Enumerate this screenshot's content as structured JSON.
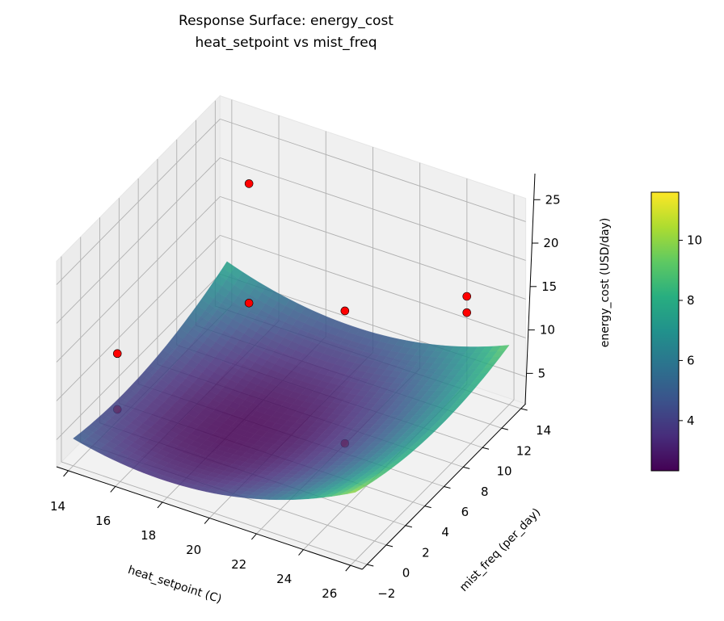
{
  "chart_data": {
    "type": "surface3d",
    "title": "Response Surface: energy_cost",
    "subtitle": "heat_setpoint vs mist_freq",
    "xlabel": "heat_setpoint (C)",
    "ylabel": "mist_freq (per_day)",
    "zlabel": "energy_cost (USD/day)",
    "xlim": [
      13.5,
      26.5
    ],
    "ylim": [
      -2.5,
      14.5
    ],
    "zlim": [
      1.5,
      28
    ],
    "xticks": [
      "14",
      "16",
      "18",
      "20",
      "22",
      "24",
      "26"
    ],
    "yticks": [
      "−2",
      "0",
      "2",
      "4",
      "6",
      "8",
      "10",
      "12",
      "14"
    ],
    "zticks": [
      "5",
      "10",
      "15",
      "20",
      "25"
    ],
    "surface_model": "z = 2.4 + 0.1(x-19.5)^2 + 0.03(y-5)^2 - 0.02(x-19.5)(y-5) + 0.2(x-19.5)",
    "surface_x_range": [
      14,
      26
    ],
    "surface_y_range": [
      -2,
      14
    ],
    "points": [
      {
        "x": 14,
        "y": 2.6,
        "z": 10.2,
        "color": "#ff0000"
      },
      {
        "x": 14,
        "y": 2.6,
        "z": 3.0,
        "color": "#ff0000"
      },
      {
        "x": 16,
        "y": 11.4,
        "z": 23.1,
        "color": "#ff0000"
      },
      {
        "x": 16,
        "y": 11.4,
        "z": 7.7,
        "color": "#ff0000"
      },
      {
        "x": 22,
        "y": 6.7,
        "z": 18.7,
        "color": "#ff0000"
      },
      {
        "x": 22,
        "y": 6.7,
        "z": 1.6,
        "color": "#ff0000"
      },
      {
        "x": 26,
        "y": 9.6,
        "z": 21.0,
        "color": "#ff0000"
      },
      {
        "x": 26,
        "y": 9.6,
        "z": 18.9,
        "color": "#ff0000"
      }
    ],
    "colorbar": {
      "range": [
        2.33,
        11.6
      ],
      "ticks": [
        "4",
        "6",
        "8",
        "10"
      ],
      "tick_values": [
        4,
        6,
        8,
        10
      ],
      "colormap": "viridis"
    }
  }
}
